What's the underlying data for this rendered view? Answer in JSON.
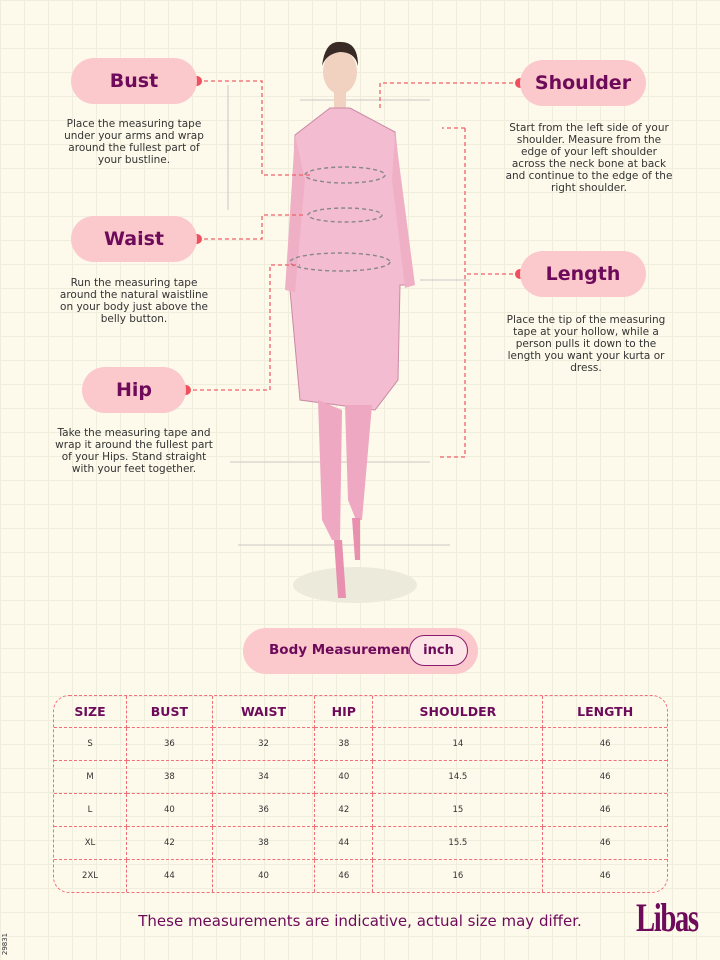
{
  "colors": {
    "pill": "#fbc8cc",
    "accent_text": "#6e0a5a",
    "dashed_line": "#f0606a",
    "background": "#fdfaeb"
  },
  "guide": [
    {
      "label": "Bust",
      "description": "Place the measuring tape under your arms and wrap around the fullest part of your bustline."
    },
    {
      "label": "Waist",
      "description": "Run the measuring tape around the natural waistline on your body just above the belly button."
    },
    {
      "label": "Hip",
      "description": "Take the measuring tape and wrap it around the fullest part of your Hips. Stand straight with your feet together."
    },
    {
      "label": "Shoulder",
      "description": "Start from the left side of your shoulder. Measure from the edge of your left shoulder across the neck bone at back and continue to the edge of the right shoulder."
    },
    {
      "label": "Length",
      "description": "Place the tip of the measuring tape at your hollow, while a person pulls it down to the length you want your kurta or dress."
    }
  ],
  "body_measurement": {
    "label": "Body Measurement",
    "unit": "inch"
  },
  "table": {
    "headers": [
      "SIZE",
      "BUST",
      "WAIST",
      "HIP",
      "SHOULDER",
      "LENGTH"
    ],
    "rows": [
      [
        "S",
        "36",
        "32",
        "38",
        "14",
        "46"
      ],
      [
        "M",
        "38",
        "34",
        "40",
        "14.5",
        "46"
      ],
      [
        "L",
        "40",
        "36",
        "42",
        "15",
        "46"
      ],
      [
        "XL",
        "42",
        "38",
        "44",
        "15.5",
        "46"
      ],
      [
        "2XL",
        "44",
        "40",
        "46",
        "16",
        "46"
      ]
    ]
  },
  "footer": {
    "note": "These measurements are indicative, actual size may differ.",
    "brand": "Libas",
    "code": "29831"
  }
}
